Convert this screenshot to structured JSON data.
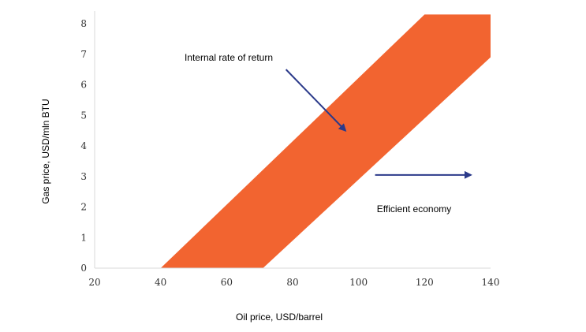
{
  "chart_data": {
    "type": "area",
    "title": "",
    "xlabel": "Oil price, USD/barrel",
    "ylabel": "Gas price, USD/mln BTU",
    "xlim": [
      20,
      140
    ],
    "ylim": [
      0,
      8.5
    ],
    "x_ticks": [
      20,
      40,
      60,
      80,
      100,
      120,
      140
    ],
    "y_ticks": [
      0,
      1,
      2,
      3,
      4,
      5,
      6,
      7,
      8
    ],
    "grid": false,
    "band": {
      "color": "#f26430",
      "polygon": [
        {
          "x": 40,
          "y": 0
        },
        {
          "x": 71,
          "y": 0
        },
        {
          "x": 140,
          "y": 6.9
        },
        {
          "x": 140,
          "y": 8.3
        },
        {
          "x": 120,
          "y": 8.3
        }
      ]
    },
    "annotations": [
      {
        "text": "Internal rate of return",
        "arrow_from": {
          "x": 78,
          "y": 6.5
        },
        "arrow_to": {
          "x": 96,
          "y": 4.5
        }
      },
      {
        "text": "Efficient economy",
        "arrow_from": {
          "x": 105,
          "y": 3.05
        },
        "arrow_to": {
          "x": 134,
          "y": 3.05
        }
      }
    ],
    "arrow_color": "#2b3a8a"
  }
}
